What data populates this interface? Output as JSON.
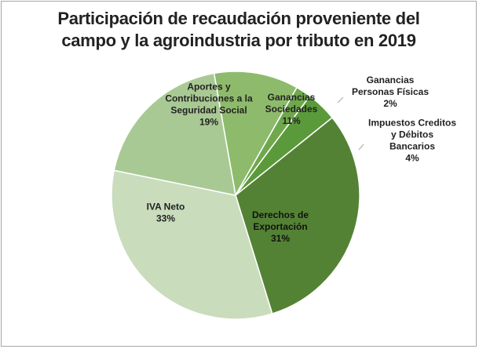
{
  "chart_data": {
    "type": "pie",
    "title_lines": [
      "Participación de recaudación proveniente del",
      "campo y la agroindustria por tributo en 2019"
    ],
    "start_angle_deg": -10,
    "direction": "clockwise",
    "slices": [
      {
        "label_lines": [
          "Ganancias",
          "Sociedades"
        ],
        "pct_label": "11%",
        "value": 11,
        "color": "#8dbb6b",
        "label_placement": "inside",
        "label_color": "#222222"
      },
      {
        "label_lines": [
          "Ganancias",
          "Personas Físicas"
        ],
        "pct_label": "2%",
        "value": 2,
        "color": "#6fa84c",
        "label_placement": "outside",
        "label_color": "#222222"
      },
      {
        "label_lines": [
          "Impuestos Creditos",
          "y Débitos",
          "Bancarios"
        ],
        "pct_label": "4%",
        "value": 4,
        "color": "#5a9a3a",
        "label_placement": "outside",
        "label_color": "#222222"
      },
      {
        "label_lines": [
          "Derechos de",
          "Exportación"
        ],
        "pct_label": "31%",
        "value": 31,
        "color": "#548235",
        "label_placement": "inside",
        "label_color": "#111111"
      },
      {
        "label_lines": [
          "IVA Neto"
        ],
        "pct_label": "33%",
        "value": 33,
        "color": "#c9dcbc",
        "label_placement": "inside",
        "label_color": "#222222"
      },
      {
        "label_lines": [
          "Aportes y",
          "Contribuciones a la",
          "Seguridad Social"
        ],
        "pct_label": "19%",
        "value": 19,
        "color": "#a9c994",
        "label_placement": "inside",
        "label_color": "#222222"
      }
    ],
    "slice_border_color": "#ffffff"
  }
}
